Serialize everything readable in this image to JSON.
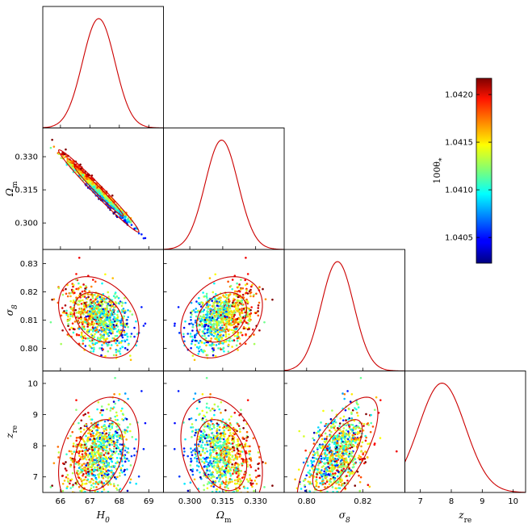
{
  "chart_data": {
    "type": "scatter",
    "title": "",
    "parameters": [
      {
        "key": "H0",
        "label": "H_0",
        "range": [
          65.4,
          69.5
        ],
        "ticks": [
          "66",
          "67",
          "68",
          "69"
        ],
        "tick_values": [
          66,
          67,
          68,
          69
        ]
      },
      {
        "key": "Om",
        "label": "Ω_m",
        "range": [
          0.288,
          0.343
        ],
        "ticks": [
          "0.300",
          "0.315",
          "0.330"
        ],
        "tick_values": [
          0.3,
          0.315,
          0.33
        ]
      },
      {
        "key": "s8",
        "label": "σ_8",
        "range": [
          0.792,
          0.835
        ],
        "ticks": [
          "0.80",
          "0.82"
        ],
        "tick_values": [
          0.8,
          0.82
        ]
      },
      {
        "key": "zre",
        "label": "z_re",
        "range": [
          6.5,
          10.4
        ],
        "ticks": [
          "7",
          "8",
          "9",
          "10"
        ],
        "tick_values": [
          7,
          8,
          9,
          10
        ]
      }
    ],
    "row_tick_labels": {
      "Om": [
        "0.300",
        "0.315",
        "0.330"
      ],
      "s8": [
        "0.80",
        "0.81",
        "0.82",
        "0.83"
      ],
      "zre": [
        "7",
        "8",
        "9",
        "10"
      ]
    },
    "row_tick_values": {
      "Om": [
        0.3,
        0.315,
        0.33
      ],
      "s8": [
        0.8,
        0.81,
        0.82,
        0.83
      ],
      "zre": [
        7,
        8,
        9,
        10
      ]
    },
    "marginals": [
      {
        "param": "H0",
        "mean": 67.3,
        "sigma": 0.55
      },
      {
        "param": "Om",
        "mean": 0.3145,
        "sigma": 0.0075
      },
      {
        "param": "s8",
        "mean": 0.811,
        "sigma": 0.0058
      },
      {
        "param": "zre",
        "mean": 7.7,
        "sigma": 0.75
      }
    ],
    "correlations": {
      "H0-Om": -0.985,
      "H0-s8": -0.3,
      "Om-s8": 0.3,
      "H0-zre": 0.3,
      "Om-zre": -0.3,
      "s8-zre": 0.72
    },
    "contour_levels": [
      "68%",
      "95%"
    ],
    "colorbar": {
      "label": "100θ_*",
      "range": [
        1.04023,
        1.04217
      ],
      "ticks": [
        "1.0405",
        "1.0410",
        "1.0415",
        "1.0420"
      ],
      "tick_values": [
        1.0405,
        1.041,
        1.0415,
        1.042
      ],
      "colormap": "jet"
    },
    "n_samples": 900,
    "line_color": "#cc0000"
  }
}
